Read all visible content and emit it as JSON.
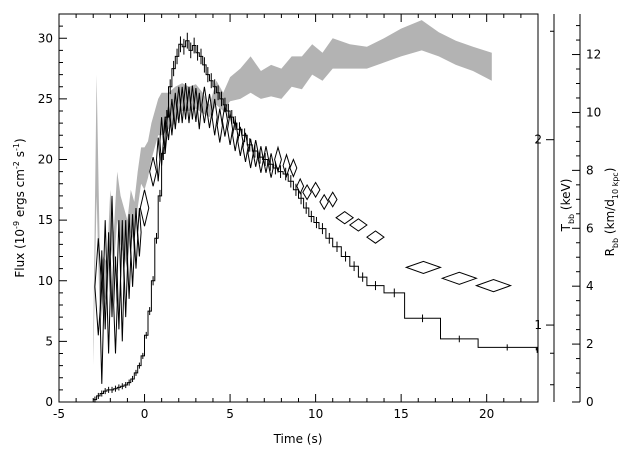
{
  "chart_data": {
    "type": "line",
    "xlabel": "Time (s)",
    "x_ticks": [
      -5,
      0,
      5,
      10,
      15,
      20
    ],
    "xlim": [
      -5,
      23
    ],
    "ylim_left": [
      0,
      32
    ],
    "y_ticks_left": [
      0,
      5,
      10,
      15,
      20,
      25,
      30
    ],
    "ylabel_left": {
      "pre": "Flux (10",
      "e1": "-9",
      "mid": " ergs cm",
      "e2": "-2",
      "mid2": " s",
      "e3": "-1",
      "post": ")"
    },
    "temp_axis": {
      "ticks": [
        1,
        2
      ],
      "label_main": "T",
      "label_sub": "bb",
      "label_post": " (keV)",
      "scale": "log",
      "range": [
        0.75,
        3.2
      ]
    },
    "radius_axis": {
      "ticks": [
        0,
        2,
        4,
        6,
        8,
        10,
        12
      ],
      "range": [
        0,
        13.4
      ],
      "label_main": "R",
      "label_sub": "bb",
      "label_mid": " (km/d",
      "label_sub2": "10 kpc",
      "label_post": ")"
    },
    "series": [
      {
        "kind": "flux-histogram",
        "points": [
          [
            -3.0,
            0.2
          ],
          [
            -2.8,
            0.5
          ],
          [
            -2.6,
            0.7
          ],
          [
            -2.4,
            0.9
          ],
          [
            -2.2,
            1.0
          ],
          [
            -2.0,
            1.0
          ],
          [
            -1.8,
            1.1
          ],
          [
            -1.6,
            1.2
          ],
          [
            -1.4,
            1.3
          ],
          [
            -1.2,
            1.4
          ],
          [
            -1.0,
            1.6
          ],
          [
            -0.8,
            1.9
          ],
          [
            -0.6,
            2.4
          ],
          [
            -0.4,
            3.0
          ],
          [
            -0.2,
            3.8
          ],
          [
            0.0,
            5.5
          ],
          [
            0.2,
            7.5
          ],
          [
            0.4,
            10.0
          ],
          [
            0.6,
            13.5
          ],
          [
            0.8,
            17.0
          ],
          [
            1.0,
            20.5
          ],
          [
            1.2,
            23.5
          ],
          [
            1.4,
            26.0
          ],
          [
            1.6,
            27.5
          ],
          [
            1.8,
            28.5
          ],
          [
            2.0,
            29.5
          ],
          [
            2.2,
            29.3
          ],
          [
            2.4,
            29.8
          ],
          [
            2.6,
            29.0
          ],
          [
            2.8,
            29.4
          ],
          [
            3.0,
            28.8
          ],
          [
            3.2,
            28.5
          ],
          [
            3.4,
            27.8
          ],
          [
            3.6,
            27.0
          ],
          [
            3.8,
            26.5
          ],
          [
            4.0,
            26.0
          ],
          [
            4.2,
            25.5
          ],
          [
            4.4,
            25.0
          ],
          [
            4.6,
            24.5
          ],
          [
            4.8,
            24.0
          ],
          [
            5.0,
            23.5
          ],
          [
            5.2,
            23.0
          ],
          [
            5.4,
            22.5
          ],
          [
            5.7,
            22.0
          ],
          [
            6.0,
            21.2
          ],
          [
            6.3,
            20.7
          ],
          [
            6.6,
            20.2
          ],
          [
            6.9,
            20.0
          ],
          [
            7.2,
            19.6
          ],
          [
            7.5,
            19.3
          ],
          [
            7.8,
            19.0
          ],
          [
            8.1,
            18.8
          ],
          [
            8.4,
            18.2
          ],
          [
            8.7,
            17.5
          ],
          [
            9.0,
            16.8
          ],
          [
            9.3,
            16.0
          ],
          [
            9.6,
            15.3
          ],
          [
            9.9,
            14.8
          ],
          [
            10.2,
            14.3
          ],
          [
            10.6,
            13.5
          ],
          [
            11.0,
            12.8
          ],
          [
            11.5,
            12.0
          ],
          [
            12.0,
            11.2
          ],
          [
            12.5,
            10.3
          ],
          [
            13.0,
            9.6
          ],
          [
            14.0,
            9.0
          ],
          [
            15.2,
            6.9
          ],
          [
            17.3,
            5.2
          ],
          [
            19.5,
            4.5
          ],
          [
            22.9,
            4.3
          ],
          [
            23.0,
            3.0
          ]
        ],
        "x_end": 23.0
      },
      {
        "kind": "radius-band",
        "x": [
          -3.0,
          -2.8,
          -2.6,
          -2.4,
          -2.2,
          -2.0,
          -1.8,
          -1.6,
          -1.4,
          -1.2,
          -1.0,
          -0.8,
          -0.6,
          -0.4,
          -0.2,
          0.0,
          0.2,
          0.4,
          0.6,
          0.8,
          1.0,
          1.4,
          1.8,
          2.2,
          2.6,
          3.0,
          3.4,
          3.8,
          4.2,
          4.6,
          5.0,
          5.6,
          6.2,
          6.8,
          7.4,
          8.0,
          8.6,
          9.2,
          9.8,
          10.4,
          11.0,
          12.0,
          13.0,
          14.0,
          15.0,
          16.2,
          17.2,
          18.2,
          19.2,
          20.3
        ],
        "lower": [
          3.0,
          17.0,
          6.0,
          9.0,
          8.0,
          13.0,
          11.0,
          15.0,
          13.0,
          12.0,
          11.0,
          14.0,
          13.0,
          16.0,
          18.0,
          17.5,
          18.5,
          20.0,
          21.0,
          22.0,
          22.0,
          22.5,
          23.0,
          24.0,
          24.0,
          24.2,
          23.8,
          23.5,
          24.5,
          24.0,
          24.8,
          25.0,
          25.5,
          25.0,
          25.2,
          25.0,
          26.0,
          25.8,
          27.0,
          26.5,
          27.5,
          27.5,
          27.5,
          28.0,
          28.5,
          29.0,
          28.5,
          27.8,
          27.3,
          26.5
        ],
        "upper": [
          5.0,
          27.0,
          11.0,
          12.0,
          11.5,
          17.5,
          14.0,
          19.0,
          17.0,
          16.0,
          15.0,
          17.5,
          16.5,
          19.0,
          21.0,
          21.0,
          21.5,
          23.0,
          24.0,
          25.0,
          25.5,
          25.5,
          26.0,
          26.3,
          26.0,
          26.2,
          25.5,
          24.5,
          26.5,
          25.5,
          26.8,
          27.5,
          28.5,
          27.3,
          27.8,
          27.5,
          28.5,
          28.5,
          29.5,
          28.8,
          30.0,
          29.5,
          29.3,
          30.0,
          30.8,
          31.5,
          30.5,
          29.8,
          29.3,
          28.8
        ]
      },
      {
        "kind": "temperature-diamonds",
        "points": [
          [
            -2.7,
            9.5,
            0.2,
            4.0
          ],
          [
            -2.5,
            7.0,
            0.1,
            5.5
          ],
          [
            -2.3,
            10.5,
            0.1,
            4.5
          ],
          [
            -2.1,
            9.0,
            0.1,
            5.0
          ],
          [
            -1.9,
            12.0,
            0.1,
            5.0
          ],
          [
            -1.7,
            8.0,
            0.1,
            4.0
          ],
          [
            -1.5,
            10.5,
            0.1,
            4.5
          ],
          [
            -1.3,
            10.0,
            0.1,
            5.0
          ],
          [
            -1.1,
            11.0,
            0.1,
            4.0
          ],
          [
            -0.9,
            12.0,
            0.1,
            3.5
          ],
          [
            -0.7,
            12.5,
            0.1,
            3.0
          ],
          [
            -0.5,
            13.5,
            0.1,
            2.5
          ],
          [
            -0.3,
            14.0,
            0.1,
            2.0
          ],
          [
            0.0,
            16.0,
            0.25,
            1.5
          ],
          [
            0.5,
            19.0,
            0.2,
            1.2
          ],
          [
            0.8,
            20.0,
            0.1,
            1.8
          ],
          [
            1.0,
            21.5,
            0.1,
            2.0
          ],
          [
            1.2,
            22.0,
            0.1,
            1.5
          ],
          [
            1.4,
            23.0,
            0.1,
            1.4
          ],
          [
            1.6,
            23.5,
            0.1,
            1.5
          ],
          [
            1.8,
            24.0,
            0.1,
            1.5
          ],
          [
            2.0,
            24.5,
            0.1,
            1.5
          ],
          [
            2.2,
            24.5,
            0.1,
            1.5
          ],
          [
            2.4,
            24.8,
            0.1,
            1.5
          ],
          [
            2.6,
            24.5,
            0.1,
            1.5
          ],
          [
            2.8,
            24.7,
            0.1,
            1.4
          ],
          [
            3.0,
            24.5,
            0.1,
            1.4
          ],
          [
            3.2,
            24.0,
            0.1,
            1.5
          ],
          [
            3.5,
            24.5,
            0.15,
            1.5
          ],
          [
            3.8,
            24.0,
            0.15,
            1.4
          ],
          [
            4.1,
            23.5,
            0.15,
            1.5
          ],
          [
            4.4,
            22.8,
            0.15,
            1.4
          ],
          [
            4.7,
            23.2,
            0.15,
            1.3
          ],
          [
            5.0,
            22.5,
            0.15,
            1.3
          ],
          [
            5.3,
            22.0,
            0.15,
            1.3
          ],
          [
            5.6,
            21.5,
            0.15,
            1.2
          ],
          [
            5.9,
            21.0,
            0.15,
            1.2
          ],
          [
            6.2,
            20.5,
            0.15,
            1.2
          ],
          [
            6.5,
            20.5,
            0.15,
            1.1
          ],
          [
            6.8,
            20.0,
            0.15,
            1.1
          ],
          [
            7.1,
            20.0,
            0.15,
            1.1
          ],
          [
            7.4,
            19.5,
            0.15,
            1.0
          ],
          [
            7.8,
            20.0,
            0.2,
            1.0
          ],
          [
            8.3,
            19.5,
            0.2,
            0.9
          ],
          [
            8.7,
            19.3,
            0.2,
            0.7
          ],
          [
            9.1,
            17.8,
            0.2,
            0.6
          ],
          [
            9.5,
            17.3,
            0.25,
            0.6
          ],
          [
            10.0,
            17.5,
            0.25,
            0.6
          ],
          [
            10.5,
            16.5,
            0.25,
            0.6
          ],
          [
            11.0,
            16.7,
            0.25,
            0.6
          ],
          [
            11.7,
            15.2,
            0.5,
            0.5
          ],
          [
            12.5,
            14.6,
            0.5,
            0.5
          ],
          [
            13.5,
            13.6,
            0.5,
            0.5
          ],
          [
            16.3,
            11.1,
            1.0,
            0.5
          ],
          [
            18.4,
            10.2,
            1.0,
            0.5
          ],
          [
            20.4,
            9.6,
            1.0,
            0.5
          ]
        ]
      }
    ]
  }
}
